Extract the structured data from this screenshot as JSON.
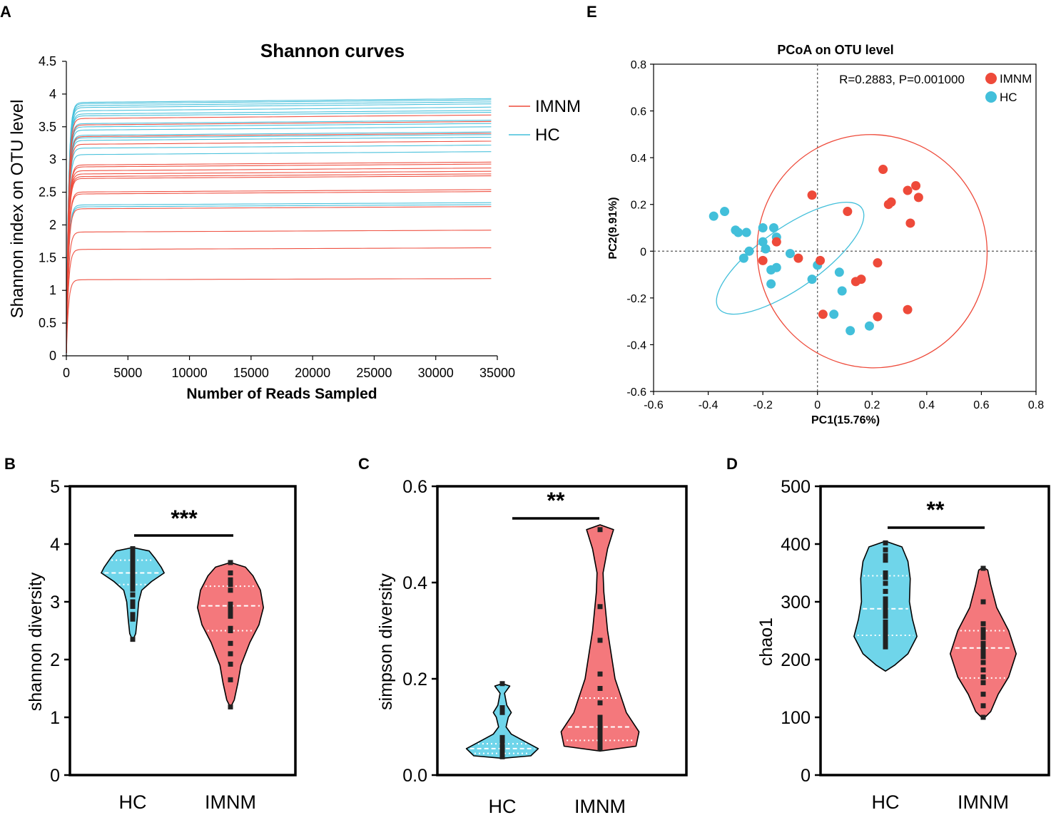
{
  "colors": {
    "imnm": "#EE4A3A",
    "hc": "#42BFDA",
    "imnm_violin": "#F4787C",
    "hc_violin": "#6FD5EA",
    "text": "#000000"
  },
  "panel_labels": {
    "A": "A",
    "B": "B",
    "C": "C",
    "D": "D",
    "E": "E"
  },
  "chart_data": [
    {
      "id": "A",
      "type": "line",
      "title": "Shannon curves",
      "xlabel": "Number of Reads Sampled",
      "ylabel": "Shannon index on OTU level",
      "xlim": [
        0,
        35000
      ],
      "ylim": [
        0,
        4.5
      ],
      "xticks": [
        "0",
        "5000",
        "10000",
        "15000",
        "20000",
        "25000",
        "30000",
        "35000"
      ],
      "yticks": [
        "0",
        "0.5",
        "1",
        "1.5",
        "2",
        "2.5",
        "3",
        "3.5",
        "4",
        "4.5"
      ],
      "legend": {
        "position": "right",
        "entries": [
          {
            "label": "IMNM",
            "group": "imnm"
          },
          {
            "label": "HC",
            "group": "hc"
          }
        ]
      },
      "x_end": 34500,
      "series": [
        {
          "group": "hc",
          "plateau": 3.93
        },
        {
          "group": "hc",
          "plateau": 3.91
        },
        {
          "group": "hc",
          "plateau": 3.88
        },
        {
          "group": "hc",
          "plateau": 3.85
        },
        {
          "group": "hc",
          "plateau": 3.8
        },
        {
          "group": "hc",
          "plateau": 3.75
        },
        {
          "group": "hc",
          "plateau": 3.72
        },
        {
          "group": "hc",
          "plateau": 3.6
        },
        {
          "group": "hc",
          "plateau": 3.55
        },
        {
          "group": "hc",
          "plateau": 3.5
        },
        {
          "group": "hc",
          "plateau": 3.42
        },
        {
          "group": "hc",
          "plateau": 3.38
        },
        {
          "group": "hc",
          "plateau": 3.34
        },
        {
          "group": "hc",
          "plateau": 3.22
        },
        {
          "group": "hc",
          "plateau": 3.12
        },
        {
          "group": "hc",
          "plateau": 2.34
        },
        {
          "group": "hc",
          "plateau": 2.31
        },
        {
          "group": "imnm",
          "plateau": 3.68
        },
        {
          "group": "imnm",
          "plateau": 3.58
        },
        {
          "group": "imnm",
          "plateau": 3.4
        },
        {
          "group": "imnm",
          "plateau": 3.28
        },
        {
          "group": "imnm",
          "plateau": 2.96
        },
        {
          "group": "imnm",
          "plateau": 2.93
        },
        {
          "group": "imnm",
          "plateau": 2.87
        },
        {
          "group": "imnm",
          "plateau": 2.82
        },
        {
          "group": "imnm",
          "plateau": 2.78
        },
        {
          "group": "imnm",
          "plateau": 2.75
        },
        {
          "group": "imnm",
          "plateau": 2.54
        },
        {
          "group": "imnm",
          "plateau": 2.51
        },
        {
          "group": "imnm",
          "plateau": 2.28
        },
        {
          "group": "imnm",
          "plateau": 1.92
        },
        {
          "group": "imnm",
          "plateau": 1.65
        },
        {
          "group": "imnm",
          "plateau": 1.18
        }
      ]
    },
    {
      "id": "E",
      "type": "scatter",
      "title": "PCoA on OTU level",
      "xlabel": "PC1(15.76%)",
      "ylabel": "PC2(9.91%)",
      "xlim": [
        -0.6,
        0.8
      ],
      "ylim": [
        -0.6,
        0.8
      ],
      "xticks": [
        "-0.6",
        "-0.4",
        "-0.2",
        "0",
        "0.2",
        "0.4",
        "0.6",
        "0.8"
      ],
      "yticks": [
        "-0.6",
        "-0.4",
        "-0.2",
        "0",
        "0.2",
        "0.4",
        "0.6",
        "0.8"
      ],
      "annotation": "R=0.2883, P=0.001000",
      "legend": {
        "position": "top-right",
        "entries": [
          {
            "label": "IMNM",
            "group": "imnm"
          },
          {
            "label": "HC",
            "group": "hc"
          }
        ]
      },
      "points": {
        "imnm": [
          [
            0.24,
            0.35
          ],
          [
            0.36,
            0.28
          ],
          [
            0.33,
            0.26
          ],
          [
            0.37,
            0.23
          ],
          [
            0.27,
            0.21
          ],
          [
            0.26,
            0.2
          ],
          [
            0.11,
            0.17
          ],
          [
            0.34,
            0.12
          ],
          [
            -0.02,
            0.24
          ],
          [
            -0.15,
            0.04
          ],
          [
            -0.07,
            -0.03
          ],
          [
            -0.2,
            -0.04
          ],
          [
            0.01,
            -0.04
          ],
          [
            0.16,
            -0.12
          ],
          [
            0.14,
            -0.13
          ],
          [
            0.22,
            -0.05
          ],
          [
            0.02,
            -0.27
          ],
          [
            0.22,
            -0.28
          ],
          [
            0.33,
            -0.25
          ]
        ],
        "hc": [
          [
            -0.38,
            0.15
          ],
          [
            -0.34,
            0.17
          ],
          [
            -0.3,
            0.09
          ],
          [
            -0.29,
            0.08
          ],
          [
            -0.26,
            0.08
          ],
          [
            -0.2,
            0.1
          ],
          [
            -0.16,
            0.1
          ],
          [
            -0.15,
            0.06
          ],
          [
            -0.2,
            0.04
          ],
          [
            -0.19,
            0.01
          ],
          [
            -0.25,
            0.0
          ],
          [
            -0.1,
            -0.01
          ],
          [
            -0.27,
            -0.03
          ],
          [
            -0.17,
            -0.08
          ],
          [
            -0.15,
            -0.07
          ],
          [
            0.0,
            -0.06
          ],
          [
            0.08,
            -0.09
          ],
          [
            -0.02,
            -0.12
          ],
          [
            0.09,
            -0.17
          ],
          [
            -0.17,
            -0.14
          ],
          [
            0.06,
            -0.27
          ],
          [
            0.12,
            -0.34
          ],
          [
            0.19,
            -0.32
          ]
        ]
      },
      "ellipses": {
        "hc": {
          "cx": -0.1,
          "cy": -0.03,
          "rx": 0.32,
          "ry": 0.13,
          "angle": -35
        },
        "imnm": {
          "cx": 0.2,
          "cy": 0.0,
          "rx": 0.42,
          "ry": 0.5,
          "angle": -20
        }
      }
    },
    {
      "id": "B",
      "type": "violin",
      "ylabel": "shannon diversity",
      "ylim": [
        0,
        5
      ],
      "yticks": [
        "0",
        "1",
        "2",
        "3",
        "4",
        "5"
      ],
      "categories": [
        "HC",
        "IMNM"
      ],
      "significance": "***",
      "groups": [
        {
          "name": "HC",
          "color": "hc",
          "min": 2.33,
          "max": 3.94,
          "median": 3.5,
          "q1": 3.3,
          "q3": 3.72,
          "profile": [
            [
              2.33,
              0.0
            ],
            [
              2.45,
              0.04
            ],
            [
              2.7,
              0.06
            ],
            [
              3.0,
              0.08
            ],
            [
              3.2,
              0.12
            ],
            [
              3.35,
              0.25
            ],
            [
              3.5,
              0.42
            ],
            [
              3.6,
              0.38
            ],
            [
              3.75,
              0.3
            ],
            [
              3.88,
              0.22
            ],
            [
              3.94,
              0.0
            ]
          ],
          "points": [
            3.92,
            3.9,
            3.88,
            3.85,
            3.8,
            3.75,
            3.72,
            3.68,
            3.65,
            3.6,
            3.58,
            3.55,
            3.52,
            3.48,
            3.45,
            3.42,
            3.38,
            3.32,
            3.28,
            3.22,
            3.12,
            3.0,
            2.92,
            2.78,
            2.7,
            2.35
          ]
        },
        {
          "name": "IMNM",
          "color": "imnm",
          "min": 1.17,
          "max": 3.68,
          "median": 2.93,
          "q1": 2.5,
          "q3": 3.27,
          "profile": [
            [
              1.17,
              0.0
            ],
            [
              1.3,
              0.05
            ],
            [
              1.6,
              0.1
            ],
            [
              1.9,
              0.14
            ],
            [
              2.3,
              0.26
            ],
            [
              2.6,
              0.38
            ],
            [
              2.9,
              0.44
            ],
            [
              3.2,
              0.4
            ],
            [
              3.45,
              0.3
            ],
            [
              3.6,
              0.2
            ],
            [
              3.68,
              0.0
            ]
          ],
          "points": [
            3.68,
            3.5,
            3.38,
            3.3,
            3.2,
            2.96,
            2.92,
            2.87,
            2.82,
            2.78,
            2.75,
            2.54,
            2.5,
            2.28,
            2.1,
            1.92,
            1.65,
            1.18
          ]
        }
      ]
    },
    {
      "id": "C",
      "type": "violin",
      "ylabel": "simpson diversity",
      "ylim": [
        0,
        0.6
      ],
      "yticks": [
        "0.0",
        "0.2",
        "0.4",
        "0.6"
      ],
      "categories": [
        "HC",
        "IMNM"
      ],
      "significance": "**",
      "groups": [
        {
          "name": "HC",
          "color": "hc",
          "min": 0.035,
          "max": 0.19,
          "median": 0.055,
          "q1": 0.045,
          "q3": 0.065,
          "profile": [
            [
              0.035,
              0.0
            ],
            [
              0.04,
              0.38
            ],
            [
              0.055,
              0.48
            ],
            [
              0.07,
              0.3
            ],
            [
              0.085,
              0.12
            ],
            [
              0.1,
              0.05
            ],
            [
              0.12,
              0.08
            ],
            [
              0.13,
              0.12
            ],
            [
              0.145,
              0.06
            ],
            [
              0.17,
              0.03
            ],
            [
              0.185,
              0.1
            ],
            [
              0.19,
              0.0
            ]
          ],
          "points": [
            0.19,
            0.14,
            0.13,
            0.078,
            0.07,
            0.066,
            0.062,
            0.06,
            0.058,
            0.055,
            0.052,
            0.05,
            0.048,
            0.045,
            0.042,
            0.04,
            0.038
          ]
        },
        {
          "name": "IMNM",
          "color": "imnm",
          "min": 0.05,
          "max": 0.52,
          "median": 0.1,
          "q1": 0.072,
          "q3": 0.16,
          "profile": [
            [
              0.05,
              0.0
            ],
            [
              0.06,
              0.48
            ],
            [
              0.09,
              0.52
            ],
            [
              0.13,
              0.35
            ],
            [
              0.2,
              0.2
            ],
            [
              0.3,
              0.1
            ],
            [
              0.38,
              0.05
            ],
            [
              0.42,
              0.04
            ],
            [
              0.47,
              0.1
            ],
            [
              0.51,
              0.18
            ],
            [
              0.52,
              0.0
            ]
          ],
          "points": [
            0.51,
            0.35,
            0.28,
            0.21,
            0.18,
            0.15,
            0.12,
            0.11,
            0.1,
            0.095,
            0.09,
            0.085,
            0.08,
            0.075,
            0.07,
            0.065,
            0.06,
            0.055
          ]
        }
      ]
    },
    {
      "id": "D",
      "type": "violin",
      "ylabel": "chao1",
      "ylim": [
        0,
        500
      ],
      "yticks": [
        "0",
        "100",
        "200",
        "300",
        "400",
        "500"
      ],
      "categories": [
        "HC",
        "IMNM"
      ],
      "significance": "**",
      "groups": [
        {
          "name": "HC",
          "color": "hc",
          "min": 180,
          "max": 405,
          "median": 288,
          "q1": 242,
          "q3": 345,
          "profile": [
            [
              180,
              0.0
            ],
            [
              190,
              0.12
            ],
            [
              210,
              0.3
            ],
            [
              240,
              0.42
            ],
            [
              270,
              0.36
            ],
            [
              300,
              0.32
            ],
            [
              340,
              0.33
            ],
            [
              370,
              0.3
            ],
            [
              395,
              0.22
            ],
            [
              405,
              0.0
            ]
          ],
          "points": [
            402,
            390,
            380,
            372,
            350,
            342,
            332,
            318,
            305,
            298,
            292,
            288,
            283,
            275,
            265,
            258,
            252,
            245,
            238,
            232,
            225,
            222
          ]
        },
        {
          "name": "IMNM",
          "color": "imnm",
          "min": 97,
          "max": 360,
          "median": 220,
          "q1": 168,
          "q3": 250,
          "profile": [
            [
              97,
              0.0
            ],
            [
              110,
              0.1
            ],
            [
              140,
              0.2
            ],
            [
              170,
              0.34
            ],
            [
              210,
              0.44
            ],
            [
              250,
              0.34
            ],
            [
              290,
              0.18
            ],
            [
              330,
              0.1
            ],
            [
              355,
              0.06
            ],
            [
              360,
              0.0
            ]
          ],
          "points": [
            358,
            300,
            262,
            252,
            245,
            238,
            228,
            222,
            218,
            212,
            205,
            195,
            182,
            170,
            160,
            140,
            120,
            100
          ]
        }
      ]
    }
  ]
}
